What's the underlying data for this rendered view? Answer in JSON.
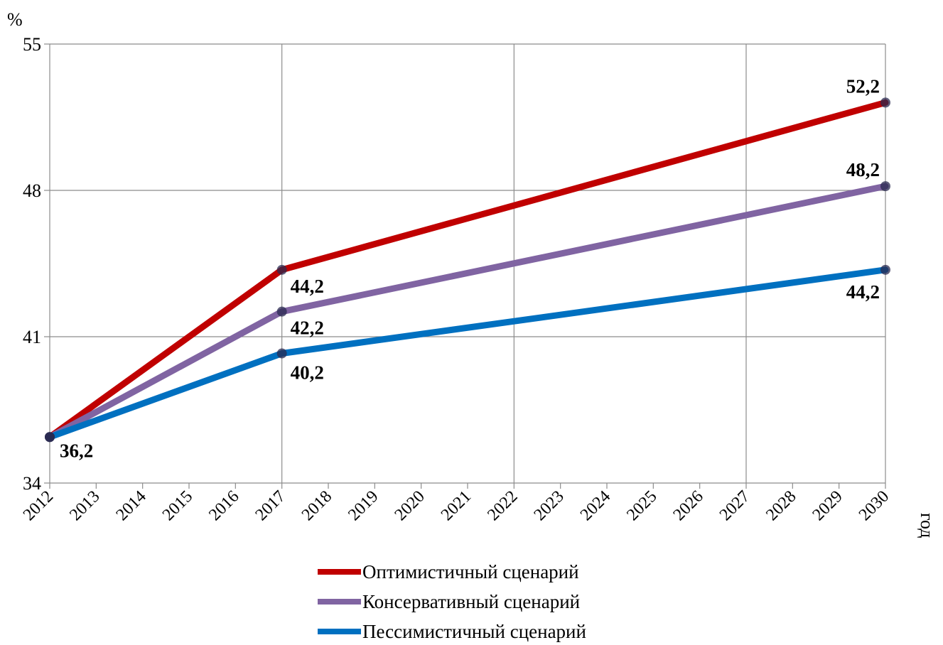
{
  "chart_data": {
    "type": "line",
    "ylabel": "%",
    "xlabel": "год",
    "x": [
      "2012",
      "2013",
      "2014",
      "2015",
      "2016",
      "2017",
      "2018",
      "2019",
      "2020",
      "2021",
      "2022",
      "2023",
      "2024",
      "2025",
      "2026",
      "2027",
      "2028",
      "2029",
      "2030"
    ],
    "ylim": [
      34,
      55
    ],
    "yticks": [
      "34",
      "41",
      "48",
      "55"
    ],
    "grid": "on",
    "legend_position": "bottom",
    "series": [
      {
        "name": "Оптимистичный сценарий",
        "color": "#C00000",
        "points": [
          [
            2012,
            36.2
          ],
          [
            2017,
            44.2
          ],
          [
            2030,
            52.2
          ]
        ],
        "labels": [
          "",
          "44,2",
          "52,2"
        ]
      },
      {
        "name": "Консервативный сценарий",
        "color": "#8064A2",
        "points": [
          [
            2012,
            36.2
          ],
          [
            2017,
            42.2
          ],
          [
            2030,
            48.2
          ]
        ],
        "labels": [
          "",
          "42,2",
          "48,2"
        ]
      },
      {
        "name": "Пессимистичный сценарий",
        "color": "#0070C0",
        "points": [
          [
            2012,
            36.2
          ],
          [
            2017,
            40.2
          ],
          [
            2030,
            44.2
          ]
        ],
        "labels": [
          "36,2",
          "40,2",
          "44,2"
        ]
      }
    ]
  }
}
